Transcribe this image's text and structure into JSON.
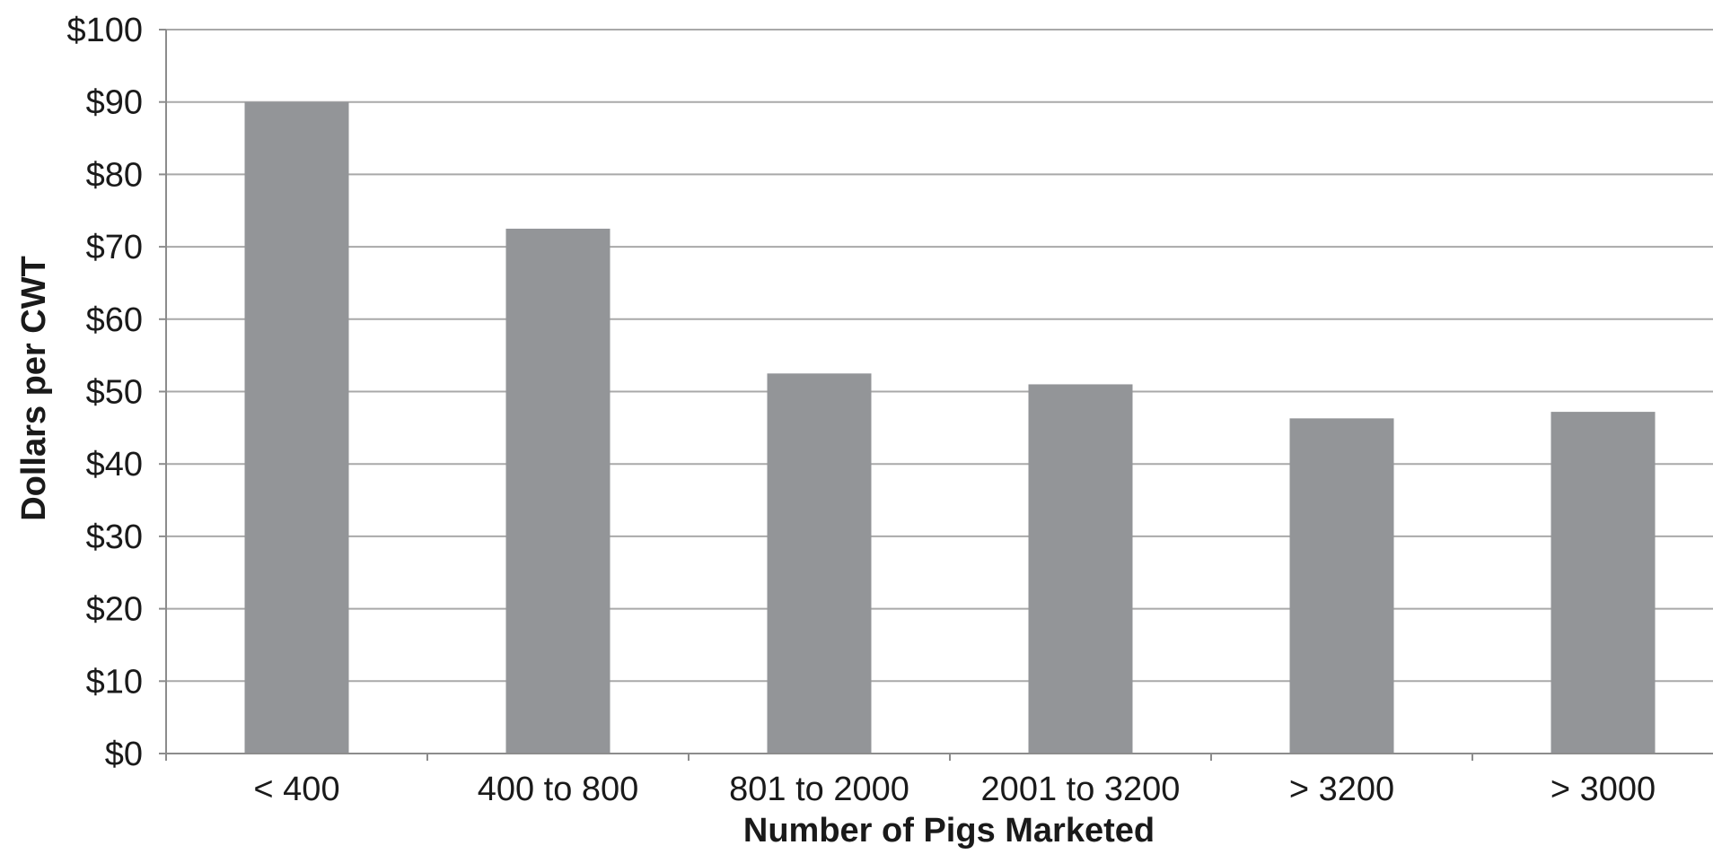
{
  "chart_data": {
    "type": "bar",
    "title": "",
    "xlabel": "Number of Pigs Marketed",
    "ylabel": "Dollars per CWT",
    "categories": [
      "< 400",
      "400 to 800",
      "801 to 2000",
      "2001 to 3200",
      "> 3200",
      "> 3000"
    ],
    "values": [
      90,
      72.5,
      52.5,
      51,
      46.3,
      47.2
    ],
    "ylim": [
      0,
      100
    ],
    "yticks": [
      0,
      10,
      20,
      30,
      40,
      50,
      60,
      70,
      80,
      90,
      100
    ],
    "ytick_labels": [
      "$0",
      "$10",
      "$20",
      "$30",
      "$40",
      "$50",
      "$60",
      "$70",
      "$80",
      "$90",
      "$100"
    ],
    "grid": true,
    "legend": "none",
    "colors": {
      "bar": "#939598",
      "grid": "#a9a9a9",
      "axis": "#8c8c8c"
    }
  }
}
